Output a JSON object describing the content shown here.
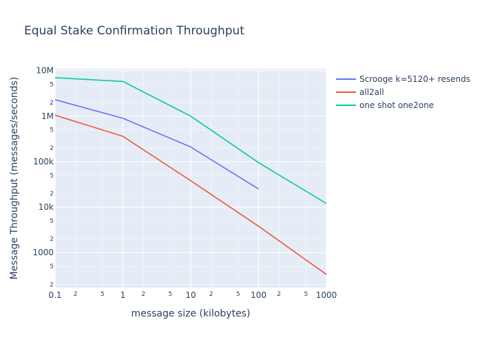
{
  "chart_data": {
    "type": "line",
    "title": "Equal Stake Confirmation Throughput",
    "xlabel": "message size (kilobytes)",
    "ylabel": "Message Throughput (messages/seconds)",
    "x_scale": "log",
    "y_scale": "log",
    "xlim": [
      0.1,
      1000
    ],
    "ylim": [
      170,
      11000000
    ],
    "grid": true,
    "legend_position": "right",
    "x_major_ticks": [
      {
        "value": 0.1,
        "label": "0.1"
      },
      {
        "value": 1,
        "label": "1"
      },
      {
        "value": 10,
        "label": "10"
      },
      {
        "value": 100,
        "label": "100"
      },
      {
        "value": 1000,
        "label": "1000"
      }
    ],
    "x_minor_ticks": [
      {
        "value": 0.2,
        "label": "2"
      },
      {
        "value": 0.5,
        "label": "5"
      },
      {
        "value": 2,
        "label": "2"
      },
      {
        "value": 5,
        "label": "5"
      },
      {
        "value": 20,
        "label": "2"
      },
      {
        "value": 50,
        "label": "5"
      },
      {
        "value": 200,
        "label": "2"
      },
      {
        "value": 500,
        "label": "5"
      }
    ],
    "y_major_ticks": [
      {
        "value": 1000,
        "label": "1000"
      },
      {
        "value": 10000,
        "label": "10k"
      },
      {
        "value": 100000,
        "label": "100k"
      },
      {
        "value": 1000000,
        "label": "1M"
      },
      {
        "value": 10000000,
        "label": "10M"
      }
    ],
    "y_minor_ticks": [
      {
        "value": 200,
        "label": "2"
      },
      {
        "value": 500,
        "label": "5"
      },
      {
        "value": 2000,
        "label": "2"
      },
      {
        "value": 5000,
        "label": "5"
      },
      {
        "value": 20000,
        "label": "2"
      },
      {
        "value": 50000,
        "label": "5"
      },
      {
        "value": 200000,
        "label": "2"
      },
      {
        "value": 500000,
        "label": "5"
      },
      {
        "value": 2000000,
        "label": "2"
      },
      {
        "value": 5000000,
        "label": "5"
      }
    ],
    "series": [
      {
        "name": "Scrooge k=5120+ resends",
        "color": "#636efa",
        "x": [
          0.1,
          1,
          10,
          100
        ],
        "y": [
          2300000,
          900000,
          210000,
          25000
        ]
      },
      {
        "name": "all2all",
        "color": "#ef553b",
        "x": [
          0.1,
          1,
          10,
          100,
          1000
        ],
        "y": [
          1050000,
          360000,
          38000,
          3800,
          330
        ]
      },
      {
        "name": "one shot one2one",
        "color": "#00cc96",
        "x": [
          0.1,
          1,
          10,
          100,
          1000
        ],
        "y": [
          7000000,
          5800000,
          1000000,
          95000,
          12000
        ]
      }
    ]
  }
}
